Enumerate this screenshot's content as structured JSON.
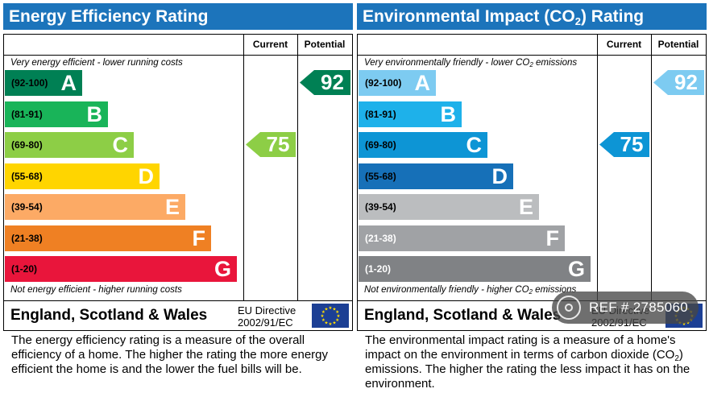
{
  "chart_data": [
    {
      "type": "bar",
      "title_prefix": "Energy Efficiency Rating",
      "title_sub": "",
      "title_suffix": "",
      "column_current": "Current",
      "column_potential": "Potential",
      "top_note_prefix": "Very energy efficient - lower running costs",
      "top_note_sub": "",
      "top_note_suffix": "",
      "bottom_note_prefix": "Not energy efficient - higher running costs",
      "bottom_note_sub": "",
      "bottom_note_suffix": "",
      "bands": [
        {
          "letter": "A",
          "range": "(92-100)",
          "color": "#008054",
          "text_color": "#000000"
        },
        {
          "letter": "B",
          "range": "(81-91)",
          "color": "#19b459",
          "text_color": "#000000"
        },
        {
          "letter": "C",
          "range": "(69-80)",
          "color": "#8dce46",
          "text_color": "#000000"
        },
        {
          "letter": "D",
          "range": "(55-68)",
          "color": "#ffd500",
          "text_color": "#000000"
        },
        {
          "letter": "E",
          "range": "(39-54)",
          "color": "#fcaa65",
          "text_color": "#000000"
        },
        {
          "letter": "F",
          "range": "(21-38)",
          "color": "#ef8023",
          "text_color": "#000000"
        },
        {
          "letter": "G",
          "range": "(1-20)",
          "color": "#e9153b",
          "text_color": "#000000"
        }
      ],
      "current": {
        "value": 75,
        "band": "C",
        "color": "#8dce46"
      },
      "potential": {
        "value": 92,
        "band": "A",
        "color": "#008054"
      },
      "region": "England, Scotland & Wales",
      "directive_line1": "EU Directive",
      "directive_line2": "2002/91/EC",
      "description_prefix": "The energy efficiency rating is a measure of the overall efficiency of a home. The higher the rating the more energy efficient the home is and the lower the fuel bills will be.",
      "description_sub": "",
      "description_suffix": ""
    },
    {
      "type": "bar",
      "title_prefix": "Environmental Impact (CO",
      "title_sub": "2",
      "title_suffix": ") Rating",
      "column_current": "Current",
      "column_potential": "Potential",
      "top_note_prefix": "Very environmentally friendly - lower CO",
      "top_note_sub": "2",
      "top_note_suffix": " emissions",
      "bottom_note_prefix": "Not environmentally friendly - higher CO",
      "bottom_note_sub": "2",
      "bottom_note_suffix": " emissions",
      "bands": [
        {
          "letter": "A",
          "range": "(92-100)",
          "color": "#7dcbf1",
          "text_color": "#000000"
        },
        {
          "letter": "B",
          "range": "(81-91)",
          "color": "#1eb1ea",
          "text_color": "#000000"
        },
        {
          "letter": "C",
          "range": "(69-80)",
          "color": "#0d95d5",
          "text_color": "#000000"
        },
        {
          "letter": "D",
          "range": "(55-68)",
          "color": "#1670b8",
          "text_color": "#000000"
        },
        {
          "letter": "E",
          "range": "(39-54)",
          "color": "#bbbdbf",
          "text_color": "#000000"
        },
        {
          "letter": "F",
          "range": "(21-38)",
          "color": "#a0a2a5",
          "text_color": "#ffffff"
        },
        {
          "letter": "G",
          "range": "(1-20)",
          "color": "#808285",
          "text_color": "#ffffff"
        }
      ],
      "current": {
        "value": 75,
        "band": "C",
        "color": "#0d95d5"
      },
      "potential": {
        "value": 92,
        "band": "A",
        "color": "#7dcbf1"
      },
      "region": "England, Scotland & Wales",
      "directive_line1": "EU Directive",
      "directive_line2": "2002/91/EC",
      "description_prefix": "The environmental impact rating is a measure of a home's impact on the environment in terms of carbon dioxide (CO",
      "description_sub": "2",
      "description_suffix": ") emissions. The higher the rating the less impact it has on the environment."
    }
  ],
  "watermark": {
    "icon": "location-pin-icon",
    "text": "REF # 2785060"
  }
}
